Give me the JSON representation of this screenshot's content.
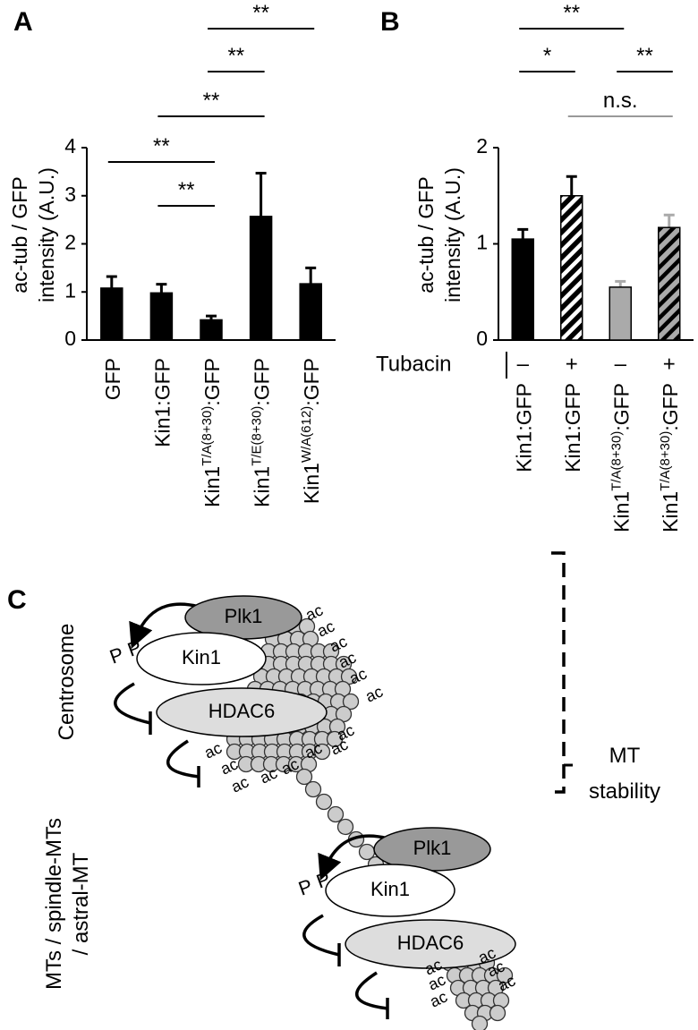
{
  "chart_data": [
    {
      "type": "bar",
      "panel": "A",
      "ylabel": [
        "ac-tub / GFP",
        "intensity (A.U.)"
      ],
      "categories": [
        [
          "GFP"
        ],
        [
          "Kin1:GFP"
        ],
        [
          "Kin1",
          "T/A(8+30)",
          ":GFP"
        ],
        [
          "Kin1",
          "T/E(8+30)",
          ":GFP"
        ],
        [
          "Kin1",
          "W/A(612)",
          ":GFP"
        ]
      ],
      "values": [
        1.08,
        0.98,
        0.42,
        2.57,
        1.17
      ],
      "errors": [
        0.24,
        0.18,
        0.08,
        0.9,
        0.33
      ],
      "color": "#000000",
      "ylim": [
        0,
        4
      ],
      "yticks": [
        0,
        1,
        2,
        3,
        4
      ],
      "significance": [
        {
          "between": [
            0,
            2
          ],
          "label": "**",
          "color": "#000000"
        },
        {
          "between": [
            1,
            2
          ],
          "label": "**",
          "color": "#000000"
        },
        {
          "between": [
            1,
            3
          ],
          "label": "**",
          "color": "#000000"
        },
        {
          "between": [
            2,
            3
          ],
          "label": "**",
          "color": "#000000"
        },
        {
          "between": [
            2,
            4
          ],
          "label": "**",
          "color": "#000000"
        }
      ]
    },
    {
      "type": "bar",
      "panel": "B",
      "ylabel": [
        "ac-tub / GFP",
        "intensity (A.U.)"
      ],
      "categories": [
        [
          "Kin1:GFP"
        ],
        [
          "Kin1:GFP"
        ],
        [
          "Kin1",
          "T/A(8+30)",
          ":GFP"
        ],
        [
          "Kin1",
          "T/A(8+30)",
          ":GFP"
        ]
      ],
      "values": [
        1.05,
        1.5,
        0.55,
        1.17
      ],
      "errors": [
        0.1,
        0.2,
        0.06,
        0.13
      ],
      "colors": [
        "#000000",
        "#000000",
        "#aaaaaa",
        "#aaaaaa"
      ],
      "hatch": [
        false,
        true,
        false,
        true
      ],
      "treatment": {
        "label": "Tubacin",
        "signs": [
          "–",
          "+",
          "–",
          "+"
        ]
      },
      "ylim": [
        0,
        2
      ],
      "yticks": [
        0,
        1,
        2
      ],
      "significance": [
        {
          "between": [
            0,
            2
          ],
          "label": "**",
          "color": "#000000"
        },
        {
          "between": [
            0,
            1
          ],
          "label": "*",
          "color": "#000000"
        },
        {
          "between": [
            2,
            3
          ],
          "label": "**",
          "color": "#000000"
        },
        {
          "between": [
            1,
            3
          ],
          "label": "n.s.",
          "color": "#999999"
        }
      ]
    }
  ],
  "diagram": {
    "panel": "C",
    "centrosome_label": "Centrosome",
    "mt_label": [
      "MTs / spindle-MTs",
      "/ astral-MT"
    ],
    "proteins": {
      "plk1": "Plk1",
      "kin1": "Kin1",
      "hdac6": "HDAC6"
    },
    "phospho": "P",
    "acetyl": "ac",
    "outcome": [
      "MT",
      "stability"
    ]
  }
}
